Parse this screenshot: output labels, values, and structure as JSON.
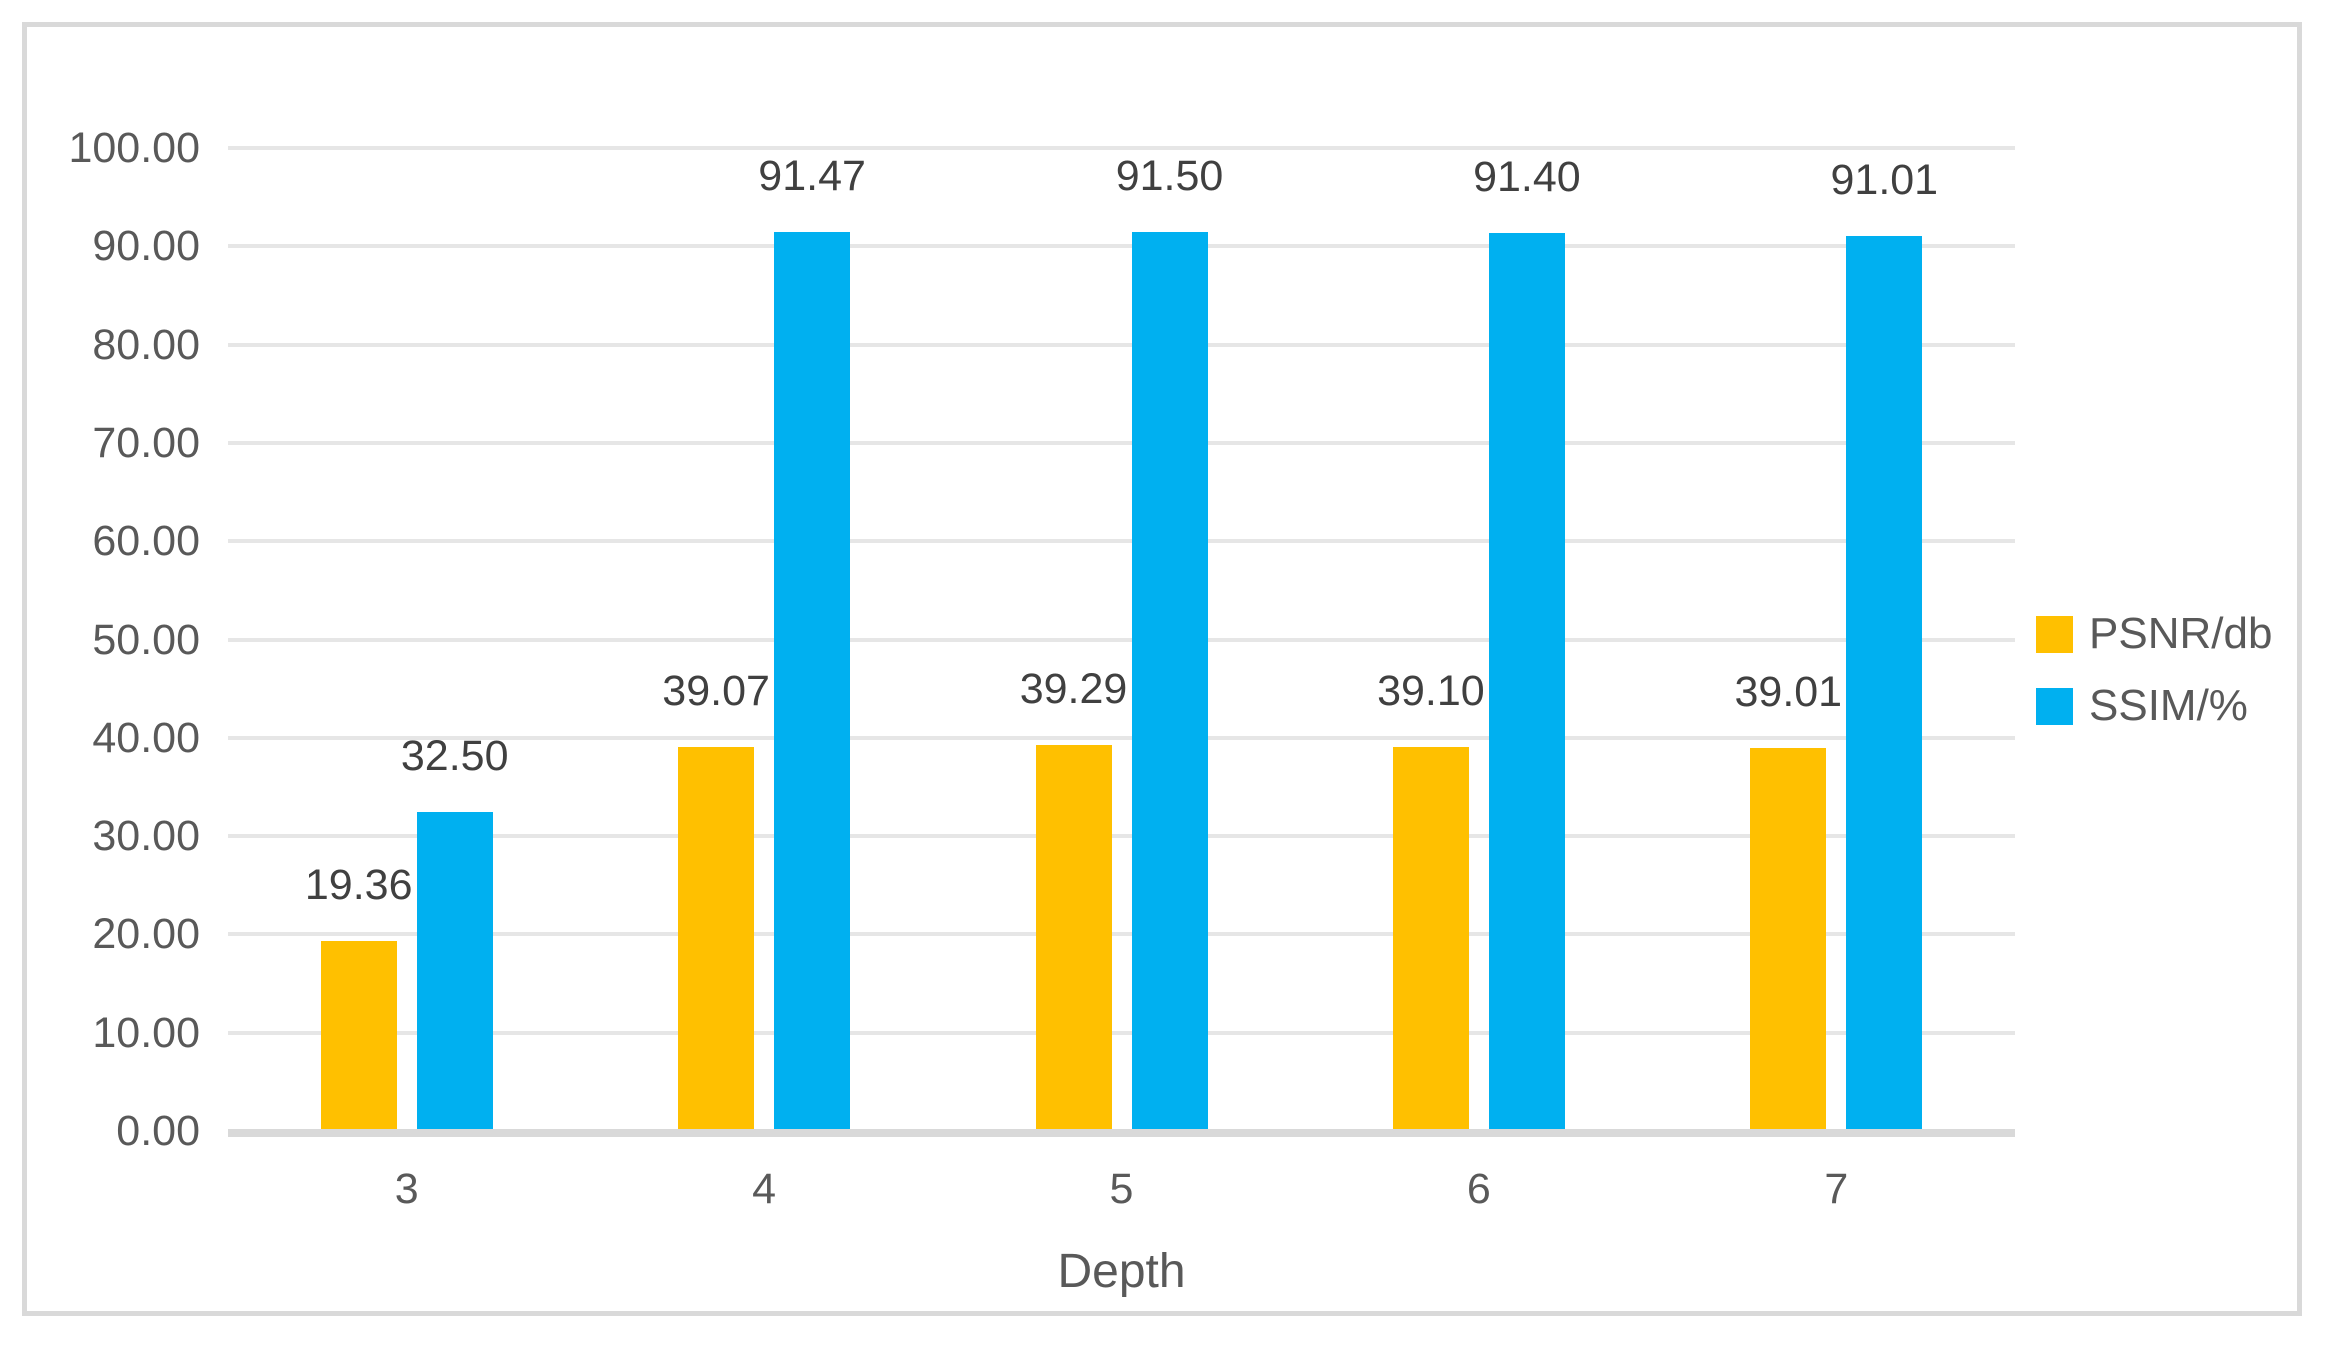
{
  "chart_data": {
    "type": "bar",
    "title": "",
    "xlabel": "Depth",
    "ylabel": "",
    "ylim": [
      0,
      100
    ],
    "ytick_step": 10,
    "ytick_labels": [
      "0.00",
      "10.00",
      "20.00",
      "30.00",
      "40.00",
      "50.00",
      "60.00",
      "70.00",
      "80.00",
      "90.00",
      "100.00"
    ],
    "grid": true,
    "legend_position": "right",
    "categories": [
      "3",
      "4",
      "5",
      "6",
      "7"
    ],
    "series": [
      {
        "name": "PSNR/db",
        "color": "#FFC000",
        "values": [
          19.36,
          39.07,
          39.29,
          39.1,
          39.01
        ],
        "labels": [
          "19.36",
          "39.07",
          "39.29",
          "39.10",
          "39.01"
        ]
      },
      {
        "name": "SSIM/%",
        "color": "#00B0F0",
        "values": [
          32.5,
          91.47,
          91.5,
          91.4,
          91.01
        ],
        "labels": [
          "32.50",
          "91.47",
          "91.50",
          "91.40",
          "91.01"
        ]
      }
    ]
  },
  "colors": {
    "background": "#FFFFFF",
    "frame_border": "#D9D9D9",
    "gridline": "#E6E6E6",
    "axis_line": "#D9D9D9",
    "tick_label": "#595959",
    "data_label": "#404040",
    "legend_label": "#595959"
  }
}
